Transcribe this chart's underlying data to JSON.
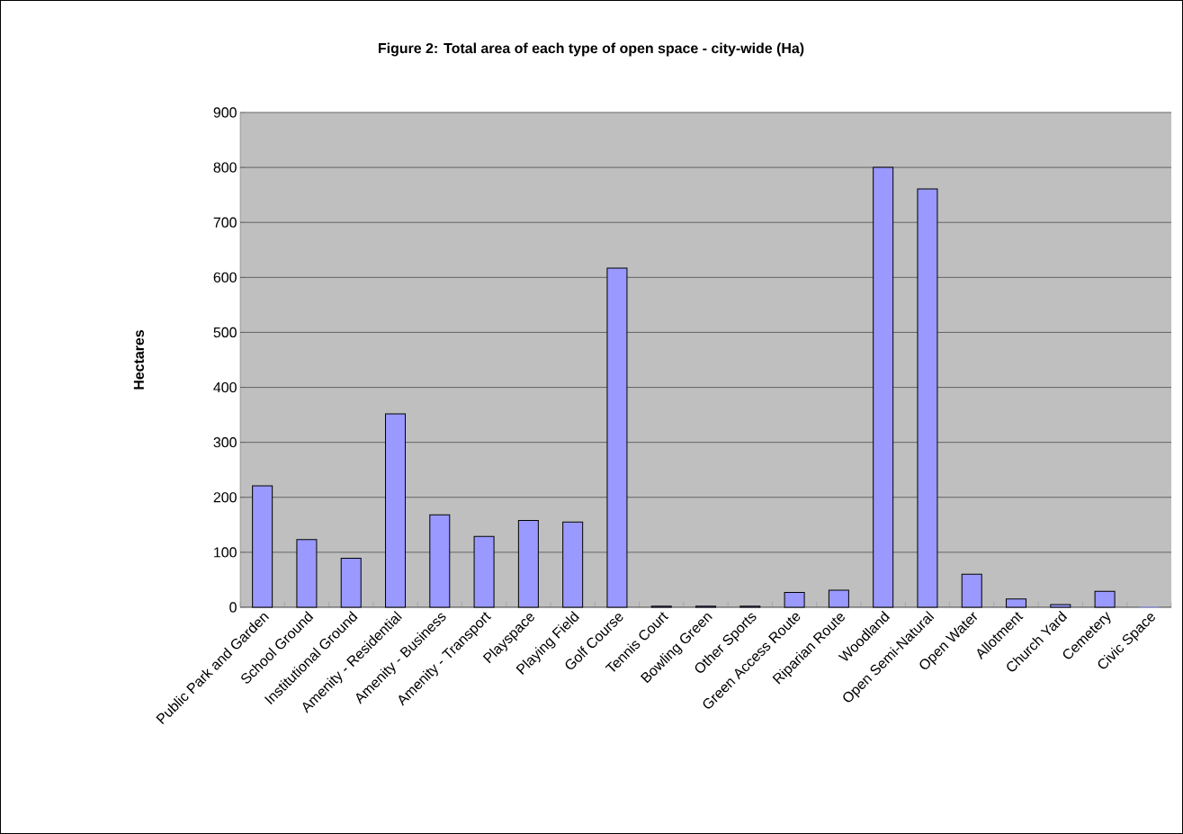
{
  "chart_data": {
    "type": "bar",
    "title": "Figure 2: Total area of each type of open space - city-wide (Ha)",
    "ylabel": "Hectares",
    "categories": [
      "Public Park and Garden",
      "School Ground",
      "Institutional Ground",
      "Amenity - Residential",
      "Amenity - Business",
      "Amenity - Transport",
      "Playspace",
      "Playing Field",
      "Golf Course",
      "Tennis Court",
      "Bowling Green",
      "Other Sports",
      "Green Access Route",
      "Riparian Route",
      "Woodland",
      "Open Semi-Natural",
      "Open Water",
      "Allotment",
      "Church Yard",
      "Cemetery",
      "Civic Space"
    ],
    "values": [
      221,
      123,
      89,
      352,
      168,
      129,
      158,
      155,
      617,
      2,
      2,
      2,
      27,
      31,
      800,
      761,
      60,
      15,
      5,
      29,
      0
    ],
    "color": "#9999ff",
    "ylim": [
      0,
      900
    ],
    "yticks": [
      0,
      100,
      200,
      300,
      400,
      500,
      600,
      700,
      800,
      900
    ],
    "grid": "y"
  }
}
